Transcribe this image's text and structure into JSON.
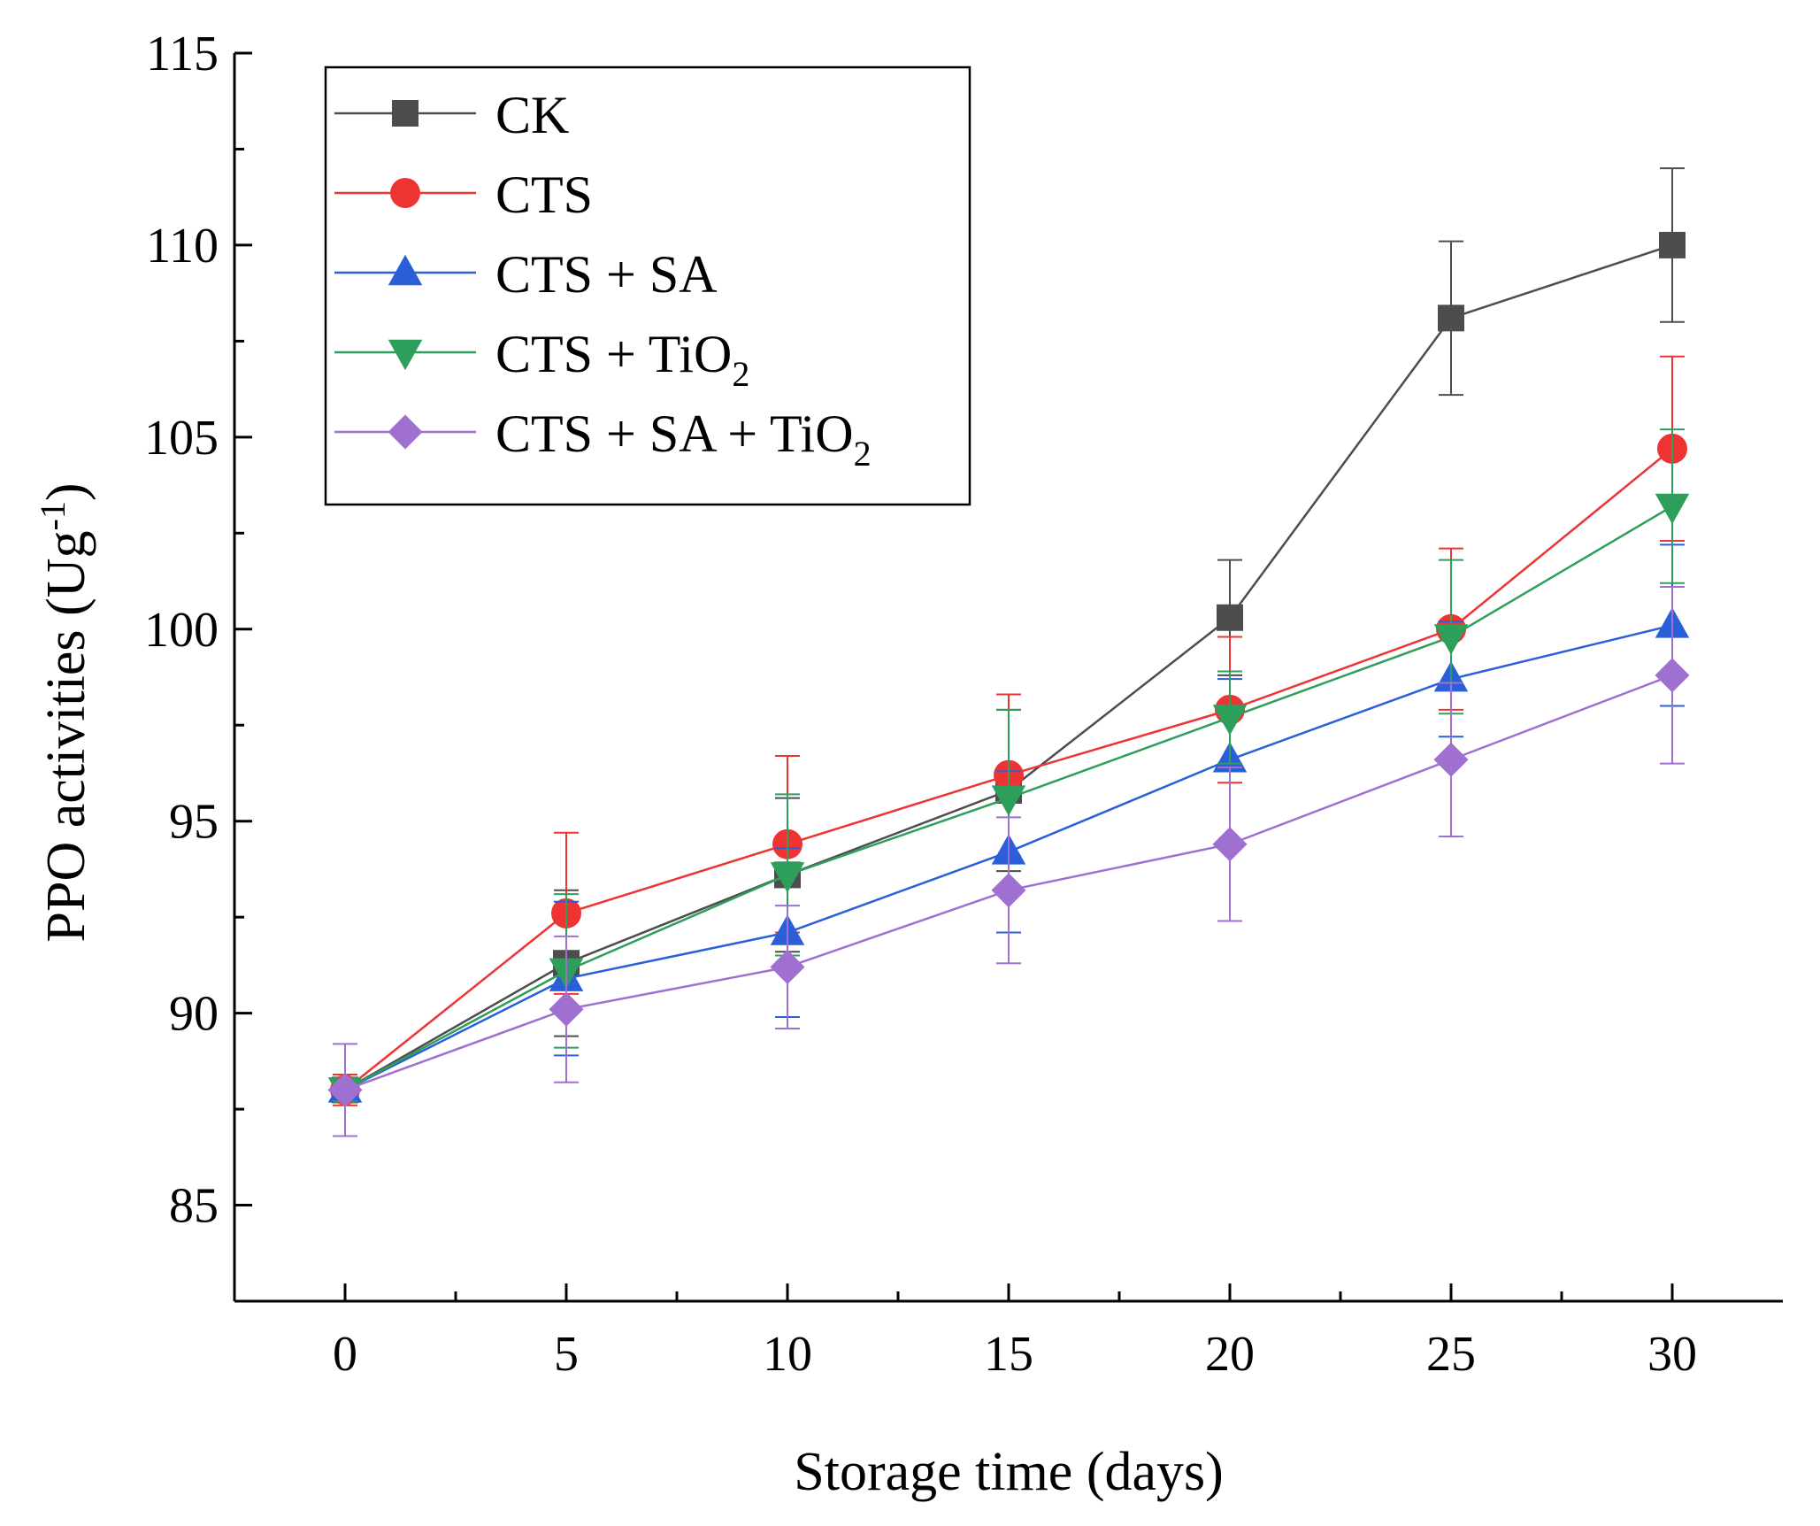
{
  "chart_data": {
    "type": "line",
    "title": "",
    "xlabel": "Storage time (days)",
    "ylabel": {
      "text": "PPO activities (Ug",
      "sup": "-1",
      "close": ")"
    },
    "x": [
      0,
      5,
      10,
      15,
      20,
      25,
      30
    ],
    "x_ticks": [
      "0",
      "5",
      "10",
      "15",
      "20",
      "25",
      "30"
    ],
    "y_ticks": [
      "85",
      "90",
      "95",
      "100",
      "105",
      "110",
      "115"
    ],
    "xlim": [
      -2.5,
      32.5
    ],
    "ylim": [
      82.5,
      115
    ],
    "legend_position": "top-left",
    "series": [
      {
        "name": "CK",
        "label_parts": [
          {
            "t": "CK"
          }
        ],
        "color": "#4d4d4d",
        "marker": "square",
        "values": [
          88.0,
          91.3,
          93.6,
          95.8,
          100.3,
          108.1,
          110.0
        ],
        "errors": [
          0.3,
          1.9,
          2.0,
          2.1,
          1.5,
          2.0,
          2.0
        ]
      },
      {
        "name": "CTS",
        "label_parts": [
          {
            "t": "CTS"
          }
        ],
        "color": "#ee3333",
        "marker": "circle",
        "values": [
          88.0,
          92.6,
          94.4,
          96.2,
          97.9,
          100.0,
          104.7
        ],
        "errors": [
          0.4,
          2.1,
          2.3,
          2.1,
          1.9,
          2.1,
          2.4
        ]
      },
      {
        "name": "CTS + SA",
        "label_parts": [
          {
            "t": "CTS + SA"
          }
        ],
        "color": "#2a5fd9",
        "marker": "triangle-up",
        "values": [
          88.0,
          90.9,
          92.1,
          94.2,
          96.6,
          98.7,
          100.1
        ],
        "errors": [
          0.3,
          2.0,
          2.2,
          2.1,
          2.1,
          1.5,
          2.1
        ]
      },
      {
        "name": "CTS + TiO2",
        "label_parts": [
          {
            "t": "CTS + TiO"
          },
          {
            "t": "2",
            "sub": true
          }
        ],
        "color": "#2e9e5b",
        "marker": "triangle-down",
        "values": [
          88.0,
          91.1,
          93.6,
          95.6,
          97.7,
          99.8,
          103.2
        ],
        "errors": [
          0.3,
          2.0,
          2.1,
          2.3,
          1.2,
          2.0,
          2.0
        ]
      },
      {
        "name": "CTS + SA + TiO2",
        "label_parts": [
          {
            "t": "CTS + SA + TiO"
          },
          {
            "t": "2",
            "sub": true
          }
        ],
        "color": "#a070d0",
        "marker": "diamond",
        "values": [
          88.0,
          90.1,
          91.2,
          93.2,
          94.4,
          96.6,
          98.8
        ],
        "errors": [
          1.2,
          1.9,
          1.6,
          1.9,
          2.0,
          2.0,
          2.3
        ]
      }
    ]
  }
}
